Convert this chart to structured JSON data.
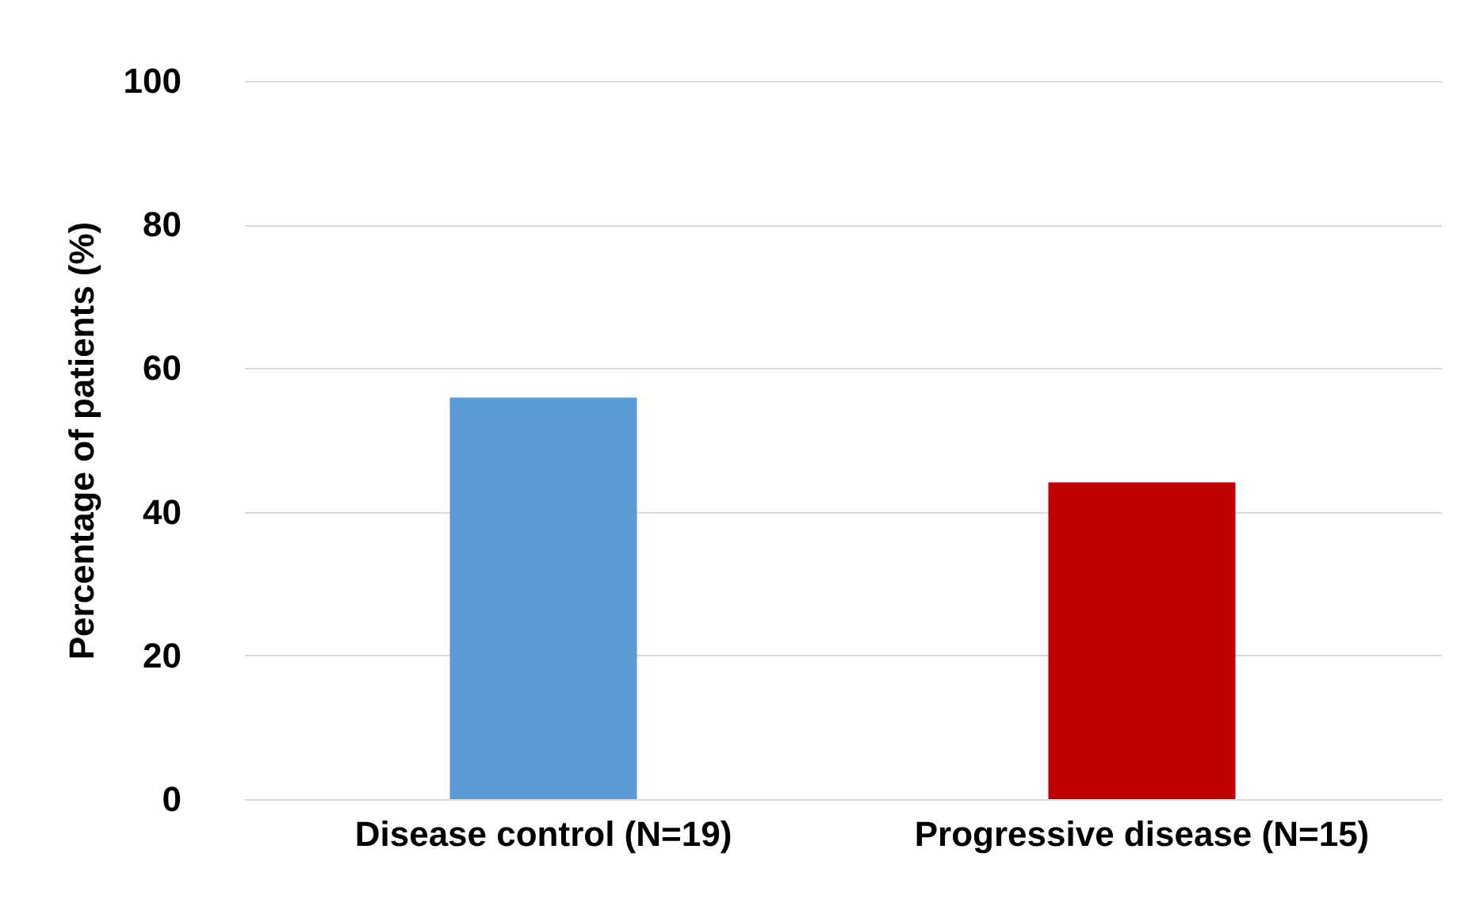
{
  "chart_data": {
    "type": "bar",
    "ylabel": "Percentage of patients (%)",
    "categories": [
      "Disease control (N=19)",
      "Progressive disease (N=15)"
    ],
    "values": [
      55.9,
      44.1
    ],
    "colors": [
      "#5b9bd5",
      "#c00000"
    ],
    "ylim": [
      0,
      100
    ],
    "yticks": [
      0,
      20,
      40,
      60,
      80,
      100
    ],
    "grid": "y"
  }
}
